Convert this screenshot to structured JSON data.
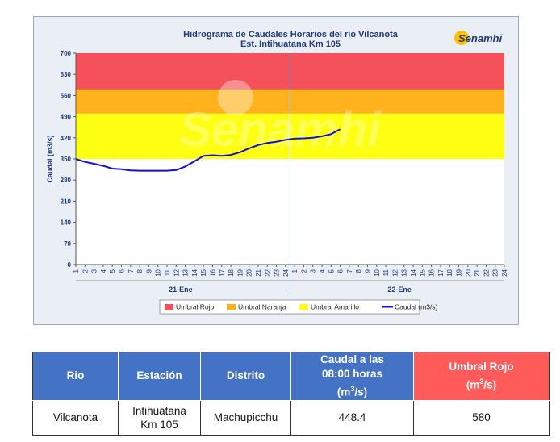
{
  "chart_data": {
    "type": "line",
    "title": "Hidrograma de Caudales Horarios del río Vilcanota",
    "subtitle": "Est. Intihuatana Km 105",
    "ylabel": "Caudal  (m3/s)",
    "ylim": [
      0,
      700
    ],
    "yticks": [
      "0",
      "70",
      "140",
      "210",
      "280",
      "350",
      "420",
      "490",
      "560",
      "630",
      "700"
    ],
    "days": [
      "21-Ene",
      "22-Ene"
    ],
    "hours": [
      "1",
      "2",
      "3",
      "4",
      "5",
      "6",
      "7",
      "8",
      "9",
      "10",
      "11",
      "12",
      "13",
      "14",
      "15",
      "16",
      "17",
      "18",
      "19",
      "20",
      "21",
      "22",
      "23",
      "24"
    ],
    "thresholds": [
      {
        "name": "Umbral Rojo",
        "from": 580,
        "to": 700,
        "color": "#f5515a"
      },
      {
        "name": "Umbral Naranja",
        "from": 500,
        "to": 580,
        "color": "#ffb21c"
      },
      {
        "name": "Umbral Amarillo",
        "from": 350,
        "to": 500,
        "color": "#ffff14"
      }
    ],
    "series": [
      {
        "name": "Caudal (m3/s)",
        "color": "#1010d8",
        "x": [
          0,
          1,
          2,
          3,
          4,
          5,
          6,
          7,
          8,
          9,
          10,
          11,
          12,
          13,
          14,
          15,
          16,
          17,
          18,
          19,
          20,
          21,
          22,
          23,
          24,
          25,
          26,
          27,
          28,
          29,
          30,
          31,
          32
        ],
        "values": [
          350,
          340,
          334,
          327,
          318,
          316,
          312,
          311,
          311,
          311,
          311,
          313,
          325,
          342,
          360,
          362,
          360,
          363,
          372,
          385,
          396,
          403,
          407,
          413,
          417,
          418,
          420,
          425,
          432,
          448,
          null,
          null,
          null
        ]
      }
    ],
    "legend": [
      "Umbral Rojo",
      "Umbral Naranja",
      "Umbral Amarillo",
      "Caudal (m3/s)"
    ],
    "legend_position": "bottom",
    "grid": false
  },
  "watermark": "Senamhi",
  "logo": {
    "text": "Senamhi"
  },
  "table": {
    "headers": {
      "rio": "Rio",
      "estacion": "Estación",
      "distrito": "Distrito",
      "caudal_line1": "Caudal a las",
      "caudal_line2": "08:00 horas",
      "caudal_unit_pre": "(m",
      "caudal_unit_sup": "3",
      "caudal_unit_post": "/s)",
      "umbral_line1": "Umbral Rojo",
      "umbral_unit_pre": "(m",
      "umbral_unit_sup": "3",
      "umbral_unit_post": "/s)"
    },
    "row": {
      "rio": "Vilcanota",
      "estacion_line1": "Intihuatana",
      "estacion_line2": "Km 105",
      "distrito": "Machupicchu",
      "caudal": "448.4",
      "umbral": "580"
    }
  }
}
